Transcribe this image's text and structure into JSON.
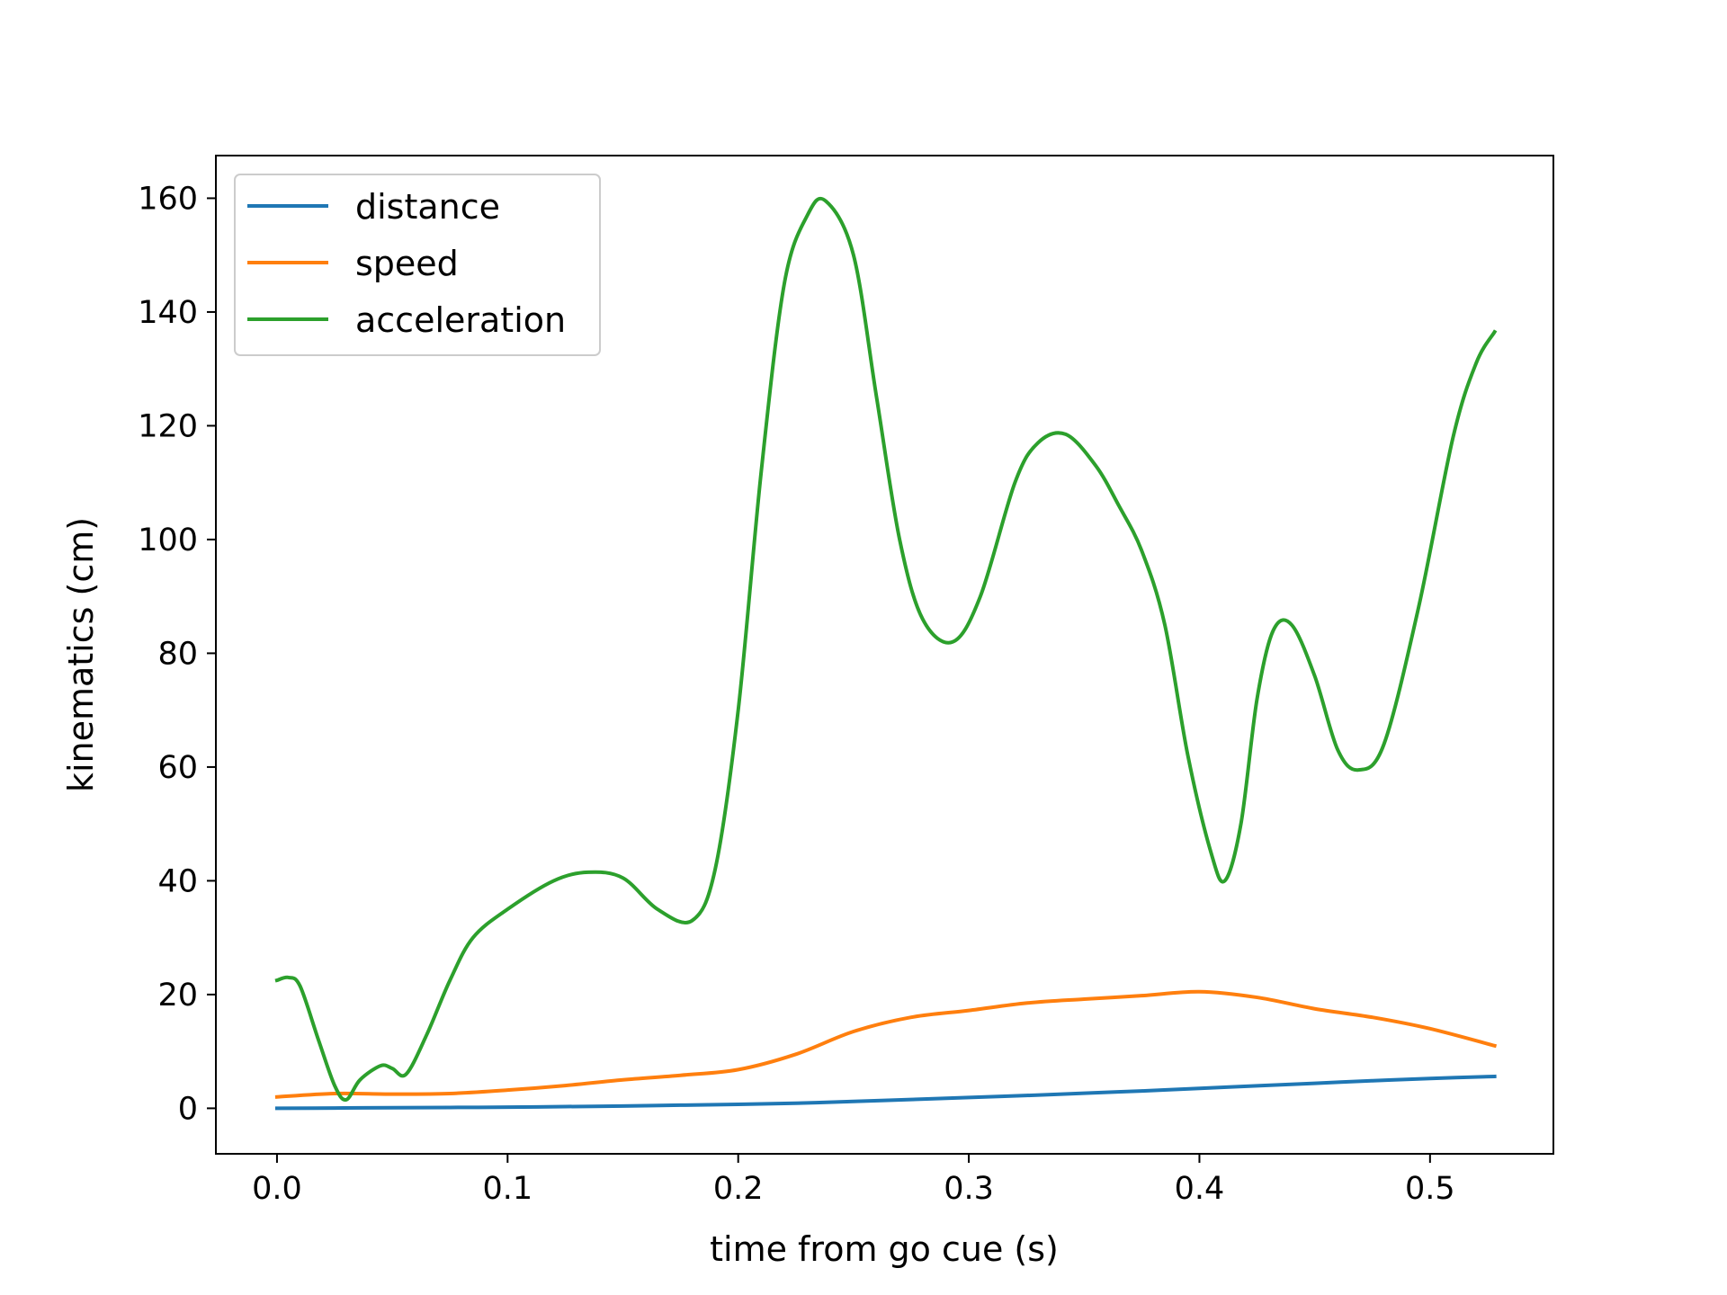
{
  "chart_data": {
    "type": "line",
    "title": "",
    "xlabel": "time from go cue (s)",
    "ylabel": "kinematics (cm)",
    "xlim": [
      -0.0265,
      0.5535
    ],
    "ylim": [
      -8,
      167.5
    ],
    "xticks": [
      0.0,
      0.1,
      0.2,
      0.3,
      0.4,
      0.5
    ],
    "xtick_labels": [
      "0.0",
      "0.1",
      "0.2",
      "0.3",
      "0.4",
      "0.5"
    ],
    "yticks": [
      0,
      20,
      40,
      60,
      80,
      100,
      120,
      140,
      160
    ],
    "ytick_labels": [
      "0",
      "20",
      "40",
      "60",
      "80",
      "100",
      "120",
      "140",
      "160"
    ],
    "grid": false,
    "legend_position": "top-left",
    "series": [
      {
        "name": "distance",
        "color": "#1f77b4",
        "x": [
          0.0,
          0.025,
          0.05,
          0.075,
          0.1,
          0.125,
          0.15,
          0.175,
          0.2,
          0.225,
          0.25,
          0.275,
          0.3,
          0.325,
          0.35,
          0.375,
          0.4,
          0.425,
          0.45,
          0.475,
          0.5,
          0.528
        ],
        "y": [
          0.0,
          0.05,
          0.1,
          0.15,
          0.2,
          0.3,
          0.4,
          0.55,
          0.7,
          0.9,
          1.2,
          1.55,
          1.9,
          2.25,
          2.65,
          3.05,
          3.5,
          3.95,
          4.4,
          4.85,
          5.25,
          5.6
        ]
      },
      {
        "name": "speed",
        "color": "#ff7f0e",
        "x": [
          0.0,
          0.025,
          0.05,
          0.075,
          0.1,
          0.125,
          0.15,
          0.175,
          0.2,
          0.225,
          0.25,
          0.275,
          0.3,
          0.325,
          0.35,
          0.375,
          0.4,
          0.425,
          0.45,
          0.475,
          0.5,
          0.528
        ],
        "y": [
          2.0,
          2.6,
          2.5,
          2.6,
          3.2,
          4.0,
          5.0,
          5.8,
          6.8,
          9.5,
          13.5,
          16.0,
          17.2,
          18.5,
          19.2,
          19.8,
          20.5,
          19.5,
          17.5,
          16.0,
          14.0,
          11.0
        ]
      },
      {
        "name": "acceleration",
        "color": "#2ca02c",
        "x": [
          0.0,
          0.005,
          0.01,
          0.018,
          0.025,
          0.03,
          0.036,
          0.045,
          0.05,
          0.056,
          0.065,
          0.075,
          0.085,
          0.1,
          0.12,
          0.135,
          0.15,
          0.165,
          0.18,
          0.19,
          0.2,
          0.21,
          0.22,
          0.23,
          0.238,
          0.25,
          0.26,
          0.27,
          0.28,
          0.293,
          0.305,
          0.32,
          0.33,
          0.342,
          0.355,
          0.365,
          0.375,
          0.385,
          0.395,
          0.405,
          0.411,
          0.418,
          0.425,
          0.432,
          0.44,
          0.45,
          0.46,
          0.469,
          0.48,
          0.495,
          0.51,
          0.52,
          0.528
        ],
        "y": [
          22.5,
          23.0,
          21.5,
          12.0,
          4.0,
          1.5,
          5.0,
          7.5,
          7.0,
          6.0,
          13.0,
          22.5,
          30.0,
          35.0,
          40.0,
          41.5,
          40.5,
          35.0,
          33.0,
          42.0,
          70.0,
          112.0,
          145.0,
          157.0,
          159.5,
          150.0,
          125.0,
          100.0,
          86.0,
          82.0,
          90.0,
          110.0,
          117.0,
          118.5,
          113.0,
          106.0,
          98.0,
          85.0,
          62.0,
          45.0,
          40.0,
          50.0,
          72.0,
          84.0,
          85.0,
          76.0,
          63.0,
          59.5,
          64.0,
          88.0,
          118.0,
          131.0,
          136.5
        ]
      }
    ]
  }
}
